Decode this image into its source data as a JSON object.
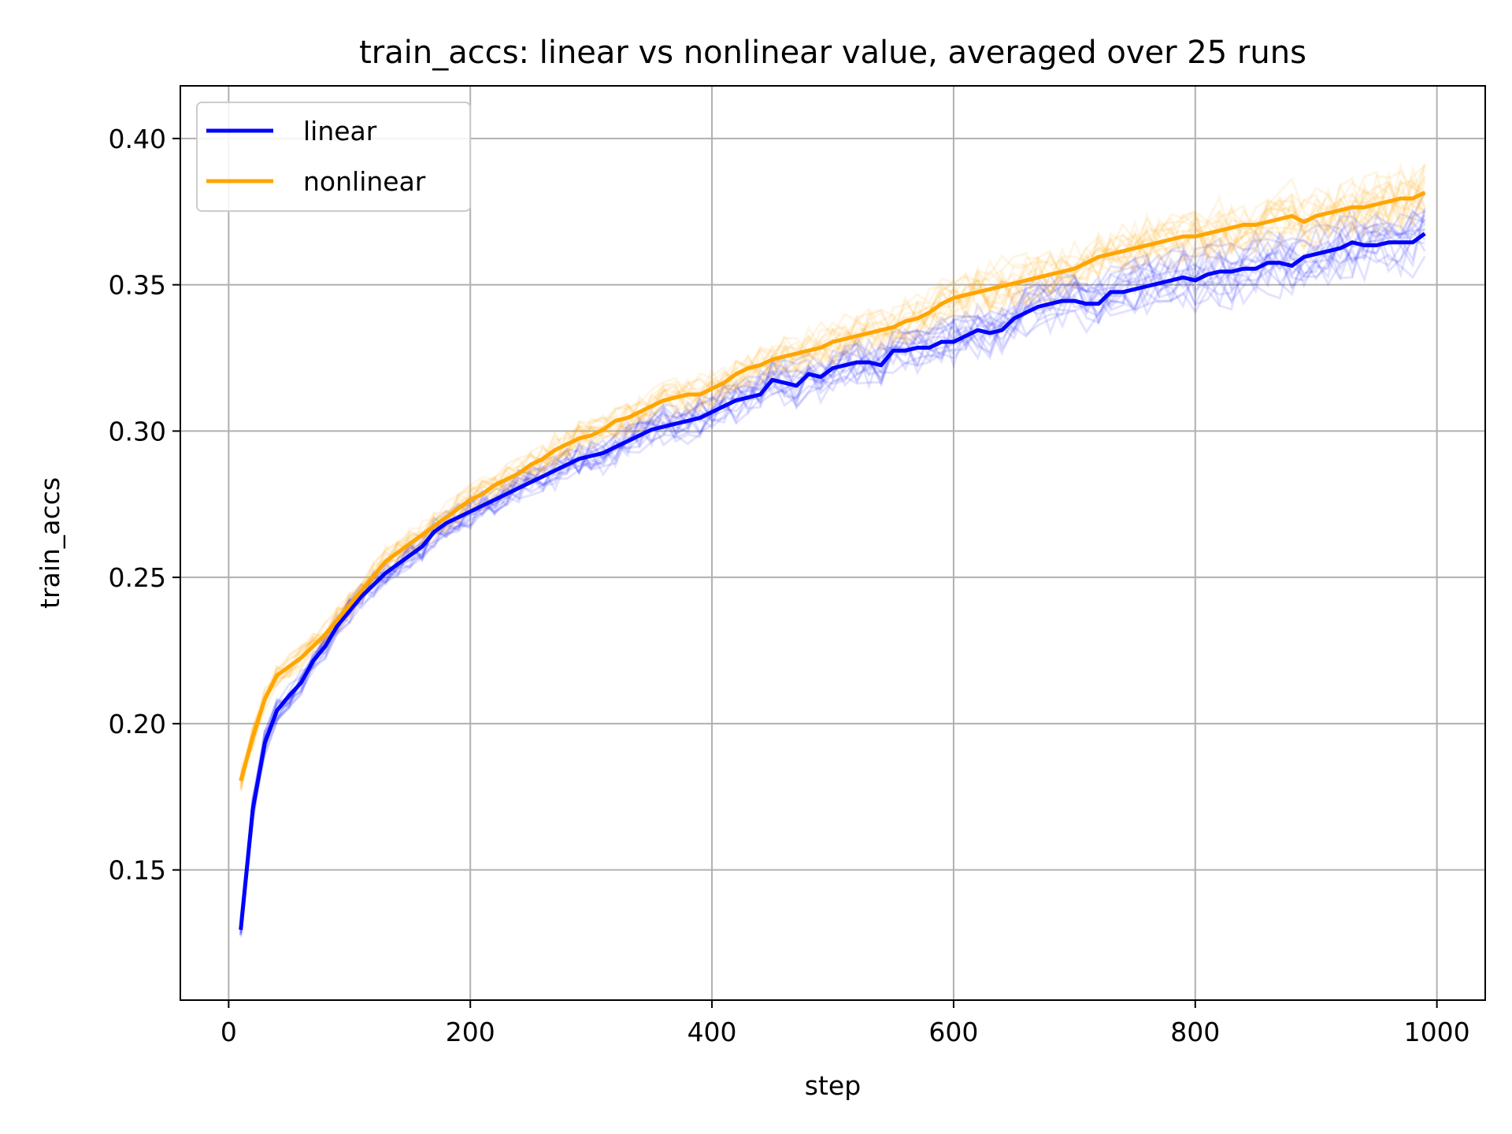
{
  "chart_data": {
    "type": "line",
    "title": "train_accs: linear vs nonlinear value, averaged over 25 runs",
    "xlabel": "step",
    "ylabel": "train_accs",
    "xlim": [
      -40,
      1040
    ],
    "ylim": [
      0.1055,
      0.418
    ],
    "xticks": [
      0,
      200,
      400,
      600,
      800,
      1000
    ],
    "xtick_labels": [
      "0",
      "200",
      "400",
      "600",
      "800",
      "1000"
    ],
    "yticks": [
      0.15,
      0.2,
      0.25,
      0.3,
      0.35,
      0.4
    ],
    "ytick_labels": [
      "0.15",
      "0.20",
      "0.25",
      "0.30",
      "0.35",
      "0.40"
    ],
    "grid": true,
    "legend": "top-left",
    "x": [
      10,
      20,
      30,
      40,
      50,
      60,
      70,
      80,
      90,
      100,
      110,
      120,
      130,
      140,
      150,
      160,
      170,
      180,
      190,
      200,
      210,
      220,
      230,
      240,
      250,
      260,
      270,
      280,
      290,
      300,
      310,
      320,
      330,
      340,
      350,
      360,
      370,
      380,
      390,
      400,
      410,
      420,
      430,
      440,
      450,
      460,
      470,
      480,
      490,
      500,
      510,
      520,
      530,
      540,
      550,
      560,
      570,
      580,
      590,
      600,
      610,
      620,
      630,
      640,
      650,
      660,
      670,
      680,
      690,
      700,
      710,
      720,
      730,
      740,
      750,
      760,
      770,
      780,
      790,
      800,
      810,
      820,
      830,
      840,
      850,
      860,
      870,
      880,
      890,
      900,
      910,
      920,
      930,
      940,
      950,
      960,
      970,
      980,
      990
    ],
    "series": [
      {
        "name": "linear",
        "color": "#0000ff",
        "values": [
          0.1295,
          0.171,
          0.1935,
          0.2045,
          0.2095,
          0.214,
          0.2215,
          0.2265,
          0.2335,
          0.2385,
          0.2435,
          0.2475,
          0.2515,
          0.2545,
          0.2575,
          0.2605,
          0.2655,
          0.2685,
          0.2705,
          0.2725,
          0.2745,
          0.2765,
          0.2785,
          0.2805,
          0.2825,
          0.2845,
          0.2865,
          0.2885,
          0.2905,
          0.2915,
          0.2925,
          0.2945,
          0.2965,
          0.2985,
          0.3005,
          0.3015,
          0.3025,
          0.3035,
          0.3045,
          0.3065,
          0.3085,
          0.3105,
          0.3115,
          0.3125,
          0.3175,
          0.3165,
          0.3155,
          0.3195,
          0.3185,
          0.3215,
          0.3225,
          0.3235,
          0.3235,
          0.3225,
          0.3275,
          0.3275,
          0.3285,
          0.3285,
          0.3305,
          0.3305,
          0.3325,
          0.3345,
          0.3335,
          0.3345,
          0.3385,
          0.3405,
          0.3425,
          0.3435,
          0.3445,
          0.3445,
          0.3435,
          0.3435,
          0.3475,
          0.3475,
          0.3485,
          0.3495,
          0.3505,
          0.3515,
          0.3525,
          0.3515,
          0.3535,
          0.3545,
          0.3545,
          0.3555,
          0.3555,
          0.3575,
          0.3575,
          0.3565,
          0.3595,
          0.3605,
          0.3615,
          0.3625,
          0.3645,
          0.3635,
          0.3635,
          0.3645,
          0.3645,
          0.3645,
          0.3675
        ]
      },
      {
        "name": "nonlinear",
        "color": "#ffa500",
        "values": [
          0.1805,
          0.1955,
          0.2085,
          0.2165,
          0.2195,
          0.2225,
          0.2265,
          0.2305,
          0.2355,
          0.2405,
          0.2455,
          0.2505,
          0.2555,
          0.2585,
          0.2615,
          0.2645,
          0.2675,
          0.2705,
          0.2735,
          0.2765,
          0.2785,
          0.2815,
          0.2835,
          0.2855,
          0.2885,
          0.2905,
          0.2935,
          0.2955,
          0.2975,
          0.2985,
          0.3005,
          0.3035,
          0.3045,
          0.3065,
          0.3085,
          0.3105,
          0.3115,
          0.3125,
          0.3125,
          0.3145,
          0.3165,
          0.3195,
          0.3215,
          0.3225,
          0.3245,
          0.3255,
          0.3265,
          0.3275,
          0.3285,
          0.3305,
          0.3315,
          0.3325,
          0.3335,
          0.3345,
          0.3355,
          0.3375,
          0.3385,
          0.3405,
          0.3435,
          0.3455,
          0.3465,
          0.3475,
          0.3485,
          0.3495,
          0.3505,
          0.3515,
          0.3525,
          0.3535,
          0.3545,
          0.3555,
          0.3575,
          0.3595,
          0.3605,
          0.3615,
          0.3625,
          0.3635,
          0.3645,
          0.3655,
          0.3665,
          0.3665,
          0.3675,
          0.3685,
          0.3695,
          0.3705,
          0.3705,
          0.3715,
          0.3725,
          0.3735,
          0.3715,
          0.3735,
          0.3745,
          0.3755,
          0.3765,
          0.3765,
          0.3775,
          0.3785,
          0.3795,
          0.3795,
          0.3815
        ]
      }
    ]
  }
}
